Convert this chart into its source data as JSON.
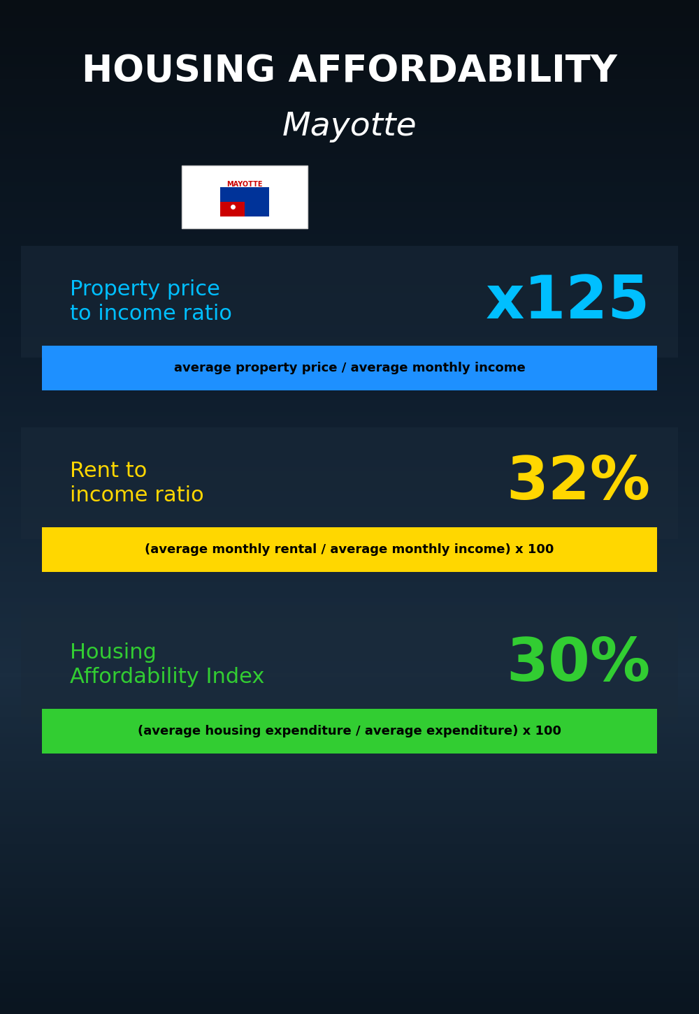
{
  "title_line1": "HOUSING AFFORDABILITY",
  "title_line2": "Mayotte",
  "bg_color": "#0d1b2a",
  "section1_label": "Property price\nto income ratio",
  "section1_value": "x125",
  "section1_label_color": "#00bfff",
  "section1_value_color": "#00bfff",
  "section1_band_text": "average property price / average monthly income",
  "section1_band_bg": "#1e90ff",
  "section1_band_text_color": "#000000",
  "section2_label": "Rent to\nincome ratio",
  "section2_value": "32%",
  "section2_label_color": "#ffd700",
  "section2_value_color": "#ffd700",
  "section2_band_text": "(average monthly rental / average monthly income) x 100",
  "section2_band_bg": "#ffd700",
  "section2_band_text_color": "#000000",
  "section3_label": "Housing\nAffordability Index",
  "section3_value": "30%",
  "section3_label_color": "#32cd32",
  "section3_value_color": "#32cd32",
  "section3_band_text": "(average housing expenditure / average expenditure) x 100",
  "section3_band_bg": "#32cd32",
  "section3_band_text_color": "#000000",
  "title_color": "#ffffff",
  "subtitle_color": "#ffffff",
  "overlay_color": "#1a2a3a",
  "overlay_alpha": 0.55
}
